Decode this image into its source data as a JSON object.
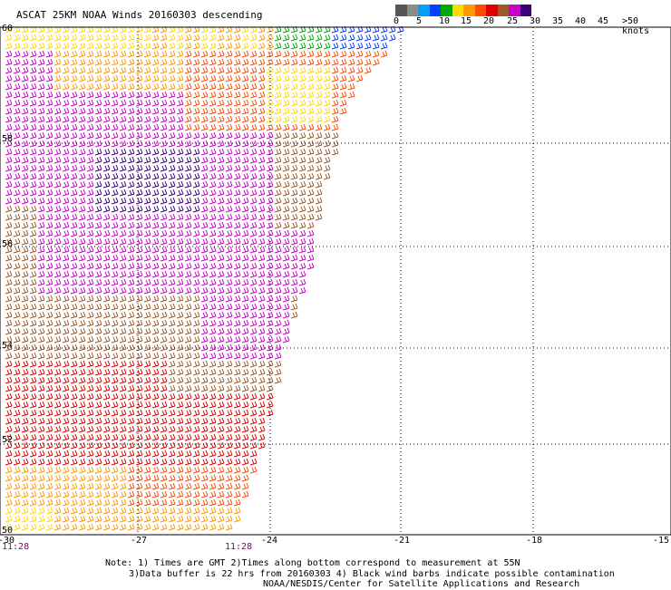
{
  "title": "ASCAT 25KM NOAA Winds 20160303 descending",
  "color_scale": {
    "labels": [
      "0",
      "5",
      "10",
      "15",
      "20",
      "25",
      "30",
      "35",
      "40",
      "45",
      ">50 knots"
    ],
    "colors": [
      "#555555",
      "#8c8c8c",
      "#00a0ff",
      "#0040ff",
      "#00aa00",
      "#ffd800",
      "#ff9a00",
      "#ff4a00",
      "#e00000",
      "#9b5a2a",
      "#cc00cc",
      "#3d007a"
    ]
  },
  "axes": {
    "lon_labels": [
      "-30",
      "-27",
      "-24",
      "-21",
      "-18",
      "-15"
    ],
    "lat_labels": [
      "60",
      "58",
      "56",
      "54",
      "52",
      "50"
    ],
    "time_labels": [
      "11:28",
      "11:28"
    ]
  },
  "notes": {
    "line1": "Note: 1) Times are GMT 2)Times along bottom correspond to measurement at 55N",
    "line2": "3)Data buffer is 22 hrs from 20160303 4) Black wind barbs indicate possible contamination",
    "line3": "NOAA/NESDIS/Center for Satellite Applications and Research"
  }
}
